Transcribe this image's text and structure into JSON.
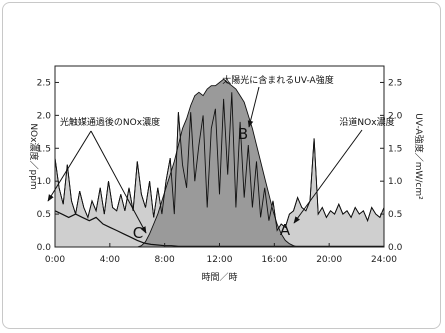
{
  "chart_data": {
    "type": "area",
    "xlabel": "時間／時",
    "ylabel_left": "NOx濃度／ppm",
    "ylabel_right": "UV-A強度／mW/cm²",
    "xlim": [
      0,
      24
    ],
    "ylim_left": [
      0,
      2.75
    ],
    "ylim_right": [
      0,
      2.75
    ],
    "x_ticks": [
      "0:00",
      "4:00",
      "8:00",
      "12:00",
      "16:00",
      "20:00",
      "24:00"
    ],
    "y_ticks_left": [
      "0.0",
      "0.5",
      "1.0",
      "1.5",
      "2.0",
      "2.5"
    ],
    "y_ticks_right": [
      "0.0",
      "0.5",
      "1.0",
      "1.5",
      "2.0",
      "2.5"
    ],
    "series": [
      {
        "name": "沿道NOx濃度",
        "label": "A",
        "x": [
          0,
          0.3,
          0.6,
          0.9,
          1.2,
          1.5,
          1.8,
          2.1,
          2.4,
          2.7,
          3.0,
          3.3,
          3.6,
          3.9,
          4.2,
          4.5,
          4.8,
          5.1,
          5.4,
          5.7,
          6.0,
          6.3,
          6.6,
          6.9,
          7.2,
          7.5,
          7.8,
          8.1,
          8.4,
          8.7,
          9.0,
          9.3,
          9.6,
          9.9,
          10.2,
          10.5,
          10.8,
          11.1,
          11.4,
          11.7,
          12.0,
          12.3,
          12.6,
          12.9,
          13.2,
          13.5,
          13.8,
          14.1,
          14.4,
          14.7,
          15.0,
          15.3,
          15.6,
          15.9,
          16.2,
          16.5,
          16.8,
          17.1,
          17.4,
          17.7,
          18.0,
          18.3,
          18.6,
          18.9,
          19.2,
          19.5,
          19.8,
          20.1,
          20.4,
          20.7,
          21.0,
          21.3,
          21.6,
          21.9,
          22.2,
          22.5,
          22.8,
          23.1,
          23.4,
          23.7,
          24.0
        ],
        "values": [
          1.35,
          0.9,
          0.65,
          1.25,
          0.7,
          0.5,
          0.85,
          0.6,
          0.45,
          0.7,
          0.55,
          0.9,
          0.5,
          1.0,
          0.6,
          0.55,
          0.8,
          0.55,
          0.9,
          0.55,
          1.3,
          0.8,
          0.6,
          1.0,
          0.45,
          0.9,
          0.5,
          1.0,
          1.35,
          0.5,
          2.05,
          1.25,
          0.9,
          2.05,
          1.0,
          1.55,
          2.0,
          0.6,
          1.8,
          2.1,
          0.8,
          2.25,
          1.1,
          2.35,
          0.6,
          1.9,
          0.75,
          1.55,
          0.6,
          1.3,
          0.45,
          0.9,
          0.4,
          0.7,
          0.25,
          0.35,
          0.3,
          0.5,
          0.55,
          0.75,
          0.6,
          0.55,
          0.7,
          1.65,
          0.5,
          0.6,
          0.45,
          0.55,
          0.5,
          0.65,
          0.5,
          0.55,
          0.45,
          0.6,
          0.5,
          0.55,
          0.4,
          0.6,
          0.5,
          0.45,
          0.6
        ]
      },
      {
        "name": "太陽光に含まれるUV-A強度",
        "label": "B",
        "x": [
          0,
          6.0,
          6.3,
          6.6,
          6.9,
          7.2,
          7.5,
          7.8,
          8.1,
          8.4,
          8.7,
          9.0,
          9.3,
          9.6,
          9.9,
          10.2,
          10.5,
          10.8,
          11.1,
          11.4,
          11.7,
          12.0,
          12.3,
          12.6,
          12.9,
          13.2,
          13.5,
          13.8,
          14.1,
          14.4,
          14.7,
          15.0,
          15.3,
          15.6,
          15.9,
          16.2,
          16.5,
          16.8,
          17.1,
          17.4,
          17.7,
          18.0,
          24.0
        ],
        "values": [
          0.0,
          0.0,
          0.02,
          0.08,
          0.2,
          0.35,
          0.5,
          0.7,
          0.9,
          1.1,
          1.3,
          1.55,
          1.8,
          1.95,
          2.15,
          2.3,
          2.35,
          2.3,
          2.4,
          2.45,
          2.45,
          2.5,
          2.55,
          2.5,
          2.45,
          2.4,
          2.3,
          2.2,
          2.0,
          1.8,
          1.55,
          1.3,
          1.05,
          0.8,
          0.55,
          0.35,
          0.2,
          0.1,
          0.05,
          0.02,
          0.0,
          0.0,
          0.0
        ]
      },
      {
        "name": "光触媒通過後のNOx濃度",
        "label": "C",
        "x": [
          0,
          0.5,
          1.0,
          1.5,
          2.0,
          2.5,
          3.0,
          3.5,
          4.0,
          4.5,
          5.0,
          5.5,
          6.0,
          6.5,
          7.0,
          7.5,
          8.0,
          8.5,
          9.0,
          9.5,
          10.0,
          10.5,
          11.0,
          11.5,
          12.0,
          12.5,
          13.0,
          13.5,
          14.0,
          14.5,
          15.0,
          15.5,
          16.0,
          16.5,
          17.0,
          17.5,
          18.0,
          18.5,
          19.0,
          20.0,
          21.0,
          22.0,
          23.0,
          24.0
        ],
        "values": [
          0.55,
          0.5,
          0.45,
          0.5,
          0.45,
          0.4,
          0.45,
          0.35,
          0.3,
          0.25,
          0.2,
          0.15,
          0.1,
          0.06,
          0.04,
          0.03,
          0.02,
          0.02,
          0.01,
          0.01,
          0.01,
          0.01,
          0.01,
          0.01,
          0.01,
          0.01,
          0.01,
          0.01,
          0.01,
          0.01,
          0.01,
          0.01,
          0.01,
          0.01,
          0.01,
          0.01,
          0.01,
          0.01,
          0.01,
          0.01,
          0.01,
          0.01,
          0.01,
          0.01
        ]
      }
    ],
    "annotations": {
      "uv_label": "太陽光に含まれるUV-A強度",
      "roadside_label": "沿道NOx濃度",
      "after_label": "光触媒通過後のNOx濃度",
      "a": "A",
      "b": "B",
      "c": "C"
    },
    "grid": false,
    "colors": {
      "fill_a": "#cfcfcf",
      "fill_b": "#9a9a9a",
      "line": "#111111",
      "axis": "#222222"
    }
  }
}
